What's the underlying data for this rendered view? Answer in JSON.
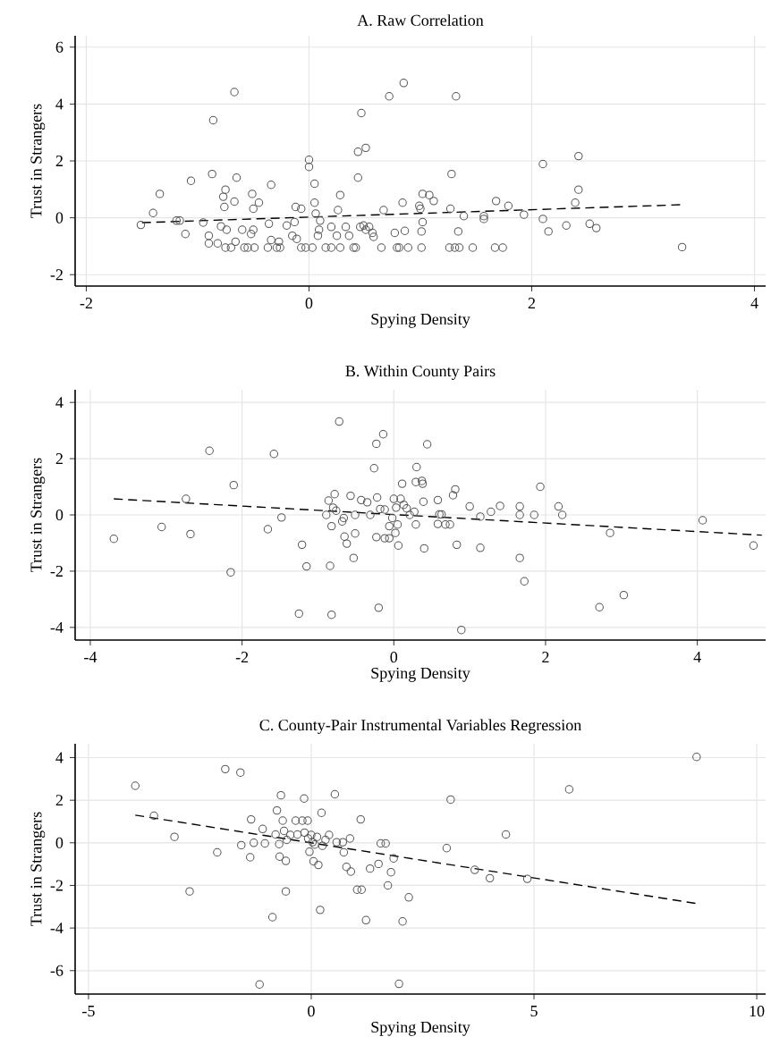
{
  "chart_data": [
    {
      "type": "scatter",
      "title": "A. Raw Correlation",
      "xlabel": "Spying Density",
      "ylabel": "Trust in Strangers",
      "xlim": [
        -2.1,
        4.1
      ],
      "ylim": [
        -2.4,
        6.4
      ],
      "xticks": [
        -2,
        0,
        2,
        4
      ],
      "yticks": [
        -2,
        0,
        2,
        4,
        6
      ],
      "grid": true,
      "marker": "circle",
      "series": [
        {
          "color": "#555555",
          "x": [
            -1.51,
            -1.4,
            -1.34,
            -1.19,
            -1.16,
            -1.11,
            -1.06,
            -0.95,
            -0.9,
            -0.9,
            -0.87,
            -0.86,
            -0.82,
            -0.79,
            -0.77,
            -0.76,
            -0.75,
            -0.75,
            -0.74,
            -0.7,
            -0.67,
            -0.67,
            -0.66,
            -0.65,
            -0.6,
            -0.58,
            -0.55,
            -0.52,
            -0.51,
            -0.5,
            -0.49,
            -0.45,
            -0.5,
            -0.37,
            -0.36,
            -0.34,
            -0.34,
            -0.29,
            -0.27,
            -0.26,
            -0.2,
            -0.15,
            -0.13,
            -0.12,
            -0.11,
            -0.07,
            -0.07,
            -0.03,
            0,
            0,
            0.03,
            0.05,
            0.05,
            0.06,
            0.08,
            0.09,
            0.1,
            0.15,
            0.2,
            0.2,
            0.25,
            0.26,
            0.28,
            0.28,
            0.33,
            0.36,
            0.4,
            0.42,
            0.44,
            0.44,
            0.46,
            0.47,
            0.49,
            0.51,
            0.51,
            0.54,
            0.57,
            0.58,
            0.65,
            0.67,
            0.72,
            0.77,
            0.79,
            0.81,
            0.84,
            0.86,
            0.85,
            0.89,
            0.99,
            1.0,
            1.01,
            1.02,
            1.01,
            1.02,
            1.08,
            1.12,
            1.26,
            1.28,
            1.27,
            1.31,
            1.32,
            1.34,
            1.35,
            1.39,
            1.47,
            1.57,
            1.57,
            1.67,
            1.68,
            1.74,
            1.79,
            1.93,
            2.1,
            2.1,
            2.15,
            2.31,
            2.39,
            2.42,
            2.42,
            2.52,
            2.58,
            3.35
          ],
          "values": [
            -0.25,
            0.17,
            0.84,
            -0.1,
            -0.1,
            -0.57,
            1.3,
            -0.17,
            -0.63,
            -0.9,
            1.54,
            3.43,
            -0.9,
            -0.3,
            0.74,
            0.38,
            0.99,
            -1.05,
            -0.42,
            -1.05,
            0.57,
            4.42,
            -0.84,
            1.41,
            -0.42,
            -1.05,
            -1.05,
            -0.57,
            0.84,
            0.32,
            -1.05,
            0.53,
            -0.42,
            -1.05,
            -0.21,
            1.16,
            -0.78,
            -1.05,
            -0.84,
            -1.05,
            -0.27,
            -0.63,
            -0.15,
            0.38,
            -0.74,
            -1.05,
            0.32,
            -1.05,
            2.04,
            1.79,
            -1.05,
            0.53,
            1.2,
            0.15,
            -0.63,
            -0.42,
            -0.1,
            -1.05,
            -0.32,
            -1.05,
            -0.63,
            0.27,
            0.8,
            -1.05,
            -0.32,
            -0.63,
            -1.05,
            -1.05,
            1.41,
            2.32,
            -0.32,
            3.68,
            -0.27,
            2.46,
            -0.42,
            -0.32,
            -0.53,
            -0.67,
            -1.05,
            0.27,
            4.27,
            -0.53,
            -1.05,
            -1.05,
            0.53,
            -0.46,
            4.74,
            -1.05,
            0.42,
            0.32,
            -0.48,
            -0.15,
            -1.05,
            0.84,
            0.8,
            0.59,
            -1.05,
            1.54,
            0.32,
            -1.05,
            4.27,
            -0.48,
            -1.05,
            0.06,
            -1.05,
            0.06,
            -0.04,
            -1.05,
            0.59,
            -1.05,
            0.42,
            0.11,
            1.89,
            -0.04,
            -0.48,
            -0.27,
            0.53,
            0.99,
            2.17,
            -0.21,
            -0.36,
            -1.03
          ]
        },
        {
          "type": "line",
          "color": "#000000",
          "marker": "none",
          "line_style": "dashed",
          "x": [
            -1.5,
            3.35
          ],
          "values": [
            -0.17,
            0.46
          ]
        }
      ]
    },
    {
      "type": "scatter",
      "title": "B. Within County Pairs",
      "xlabel": "Spying Density",
      "ylabel": "Trust in Strangers",
      "xlim": [
        -4.2,
        4.9
      ],
      "ylim": [
        -4.45,
        4.45
      ],
      "xticks": [
        -4,
        -2,
        0,
        2,
        4
      ],
      "yticks": [
        -4,
        -2,
        0,
        2,
        4
      ],
      "grid": true,
      "marker": "circle",
      "series": [
        {
          "color": "#555555",
          "x": [
            -3.69,
            -3.06,
            -2.74,
            -2.68,
            -2.43,
            -2.15,
            -2.11,
            -1.66,
            -1.58,
            -1.48,
            -1.25,
            -1.21,
            -1.15,
            -0.89,
            -0.86,
            -0.84,
            -0.82,
            -0.82,
            -0.8,
            -0.78,
            -0.76,
            -0.72,
            -0.68,
            -0.66,
            -0.65,
            -0.62,
            -0.57,
            -0.53,
            -0.51,
            -0.51,
            -0.43,
            -0.35,
            -0.31,
            -0.26,
            -0.23,
            -0.23,
            -0.22,
            -0.2,
            -0.18,
            -0.14,
            -0.12,
            -0.12,
            -0.06,
            -0.06,
            -0.02,
            0,
            0.02,
            0.03,
            0.05,
            0.06,
            0.09,
            0.11,
            0.13,
            0.17,
            0.21,
            0.27,
            0.29,
            0.29,
            0.3,
            0.37,
            0.38,
            0.39,
            0.4,
            0.44,
            0.58,
            0.6,
            0.63,
            0.58,
            0.68,
            0.74,
            0.78,
            0.81,
            0.83,
            0.89,
            1.0,
            1.14,
            1.14,
            1.28,
            1.4,
            1.66,
            1.66,
            1.66,
            1.72,
            1.85,
            1.93,
            2.17,
            2.22,
            2.71,
            2.85,
            3.03,
            4.07,
            4.74
          ],
          "values": [
            -0.85,
            -0.43,
            0.57,
            -0.68,
            2.28,
            -2.04,
            1.06,
            -0.51,
            2.17,
            -0.09,
            -3.51,
            -1.06,
            -1.83,
            0,
            0.51,
            -1.81,
            -3.55,
            -0.4,
            0.26,
            0.74,
            0.15,
            3.32,
            -0.23,
            -0.11,
            -0.77,
            -1.02,
            0.68,
            -1.53,
            -0.66,
            0,
            0.53,
            0.45,
            0,
            1.66,
            2.53,
            -0.79,
            0.62,
            -3.3,
            0.21,
            2.87,
            0.19,
            -0.83,
            -0.83,
            -0.4,
            -0.11,
            0.57,
            -0.64,
            0.26,
            -0.34,
            -1.09,
            0.57,
            1.11,
            0.36,
            0.23,
            0,
            0.11,
            1.17,
            -0.34,
            1.7,
            1.21,
            1.11,
            0.47,
            -1.19,
            2.51,
            0.53,
            0.02,
            0.02,
            -0.32,
            -0.34,
            -0.34,
            0.7,
            0.91,
            -1.06,
            -4.09,
            0.3,
            -1.17,
            -0.06,
            0.11,
            0.32,
            0.3,
            0,
            -1.53,
            -2.36,
            0,
            1.0,
            0.3,
            0,
            -3.28,
            -0.64,
            -2.85,
            -0.19,
            -1.09
          ]
        },
        {
          "type": "line",
          "color": "#000000",
          "marker": "none",
          "line_style": "dashed",
          "x": [
            -3.69,
            4.85
          ],
          "values": [
            0.57,
            -0.72
          ]
        }
      ]
    },
    {
      "type": "scatter",
      "title": "C. County-Pair Instrumental Variables Regression",
      "xlabel": "Spying Density",
      "ylabel": "Trust in Strangers",
      "xlim": [
        -5.3,
        10.2
      ],
      "ylim": [
        -7.1,
        4.65
      ],
      "xticks": [
        -5,
        0,
        5,
        10
      ],
      "yticks": [
        -6,
        -4,
        -2,
        0,
        2,
        4
      ],
      "grid": true,
      "marker": "circle",
      "series": [
        {
          "color": "#555555",
          "x": [
            -3.95,
            -3.53,
            -3.07,
            -2.73,
            -2.11,
            -1.93,
            -1.59,
            -1.57,
            -1.37,
            -1.35,
            -1.29,
            -1.09,
            -1.04,
            -0.87,
            -0.8,
            -0.77,
            -0.72,
            -0.71,
            -0.68,
            -0.64,
            -0.61,
            -0.57,
            -0.57,
            -0.55,
            -0.47,
            -0.35,
            -0.31,
            -0.2,
            -0.16,
            -0.15,
            -0.08,
            -0.07,
            -0.04,
            0,
            0.03,
            0.05,
            0.08,
            0.13,
            0.16,
            0.2,
            0.23,
            0.25,
            0.32,
            0.4,
            0.53,
            0.57,
            0.71,
            0.73,
            0.79,
            0.87,
            0.89,
            1.03,
            1.11,
            1.13,
            1.23,
            1.32,
            1.51,
            1.56,
            1.67,
            1.72,
            1.79,
            1.85,
            2.05,
            2.19,
            3.04,
            3.13,
            3.67,
            4.01,
            4.37,
            4.85,
            5.79,
            8.65,
            -1.16,
            1.97
          ],
          "values": [
            2.68,
            1.27,
            0.28,
            -2.28,
            -0.45,
            3.46,
            3.3,
            -0.11,
            -0.68,
            1.1,
            0,
            0.65,
            -0.03,
            -3.49,
            0.39,
            1.52,
            -0.06,
            -0.65,
            2.23,
            1.04,
            0.56,
            -0.85,
            -2.28,
            0.14,
            0.37,
            1.04,
            0.39,
            1.04,
            2.08,
            0.48,
            1.04,
            0.2,
            -0.42,
            0.37,
            0.03,
            -0.87,
            -0.08,
            0.28,
            -1.04,
            -3.15,
            1.41,
            -0.14,
            0.14,
            0.37,
            2.28,
            0.03,
            0.03,
            -0.45,
            -1.13,
            0.2,
            -1.35,
            -2.2,
            1.1,
            -2.2,
            -3.63,
            -1.21,
            -0.99,
            -0.03,
            -0.03,
            -2.0,
            -1.38,
            -0.73,
            -3.69,
            -2.56,
            -0.25,
            2.03,
            -1.27,
            -1.66,
            0.39,
            -1.69,
            2.51,
            4.03,
            -6.65,
            -6.62
          ]
        },
        {
          "type": "line",
          "color": "#000000",
          "marker": "none",
          "line_style": "dashed",
          "x": [
            -3.95,
            8.65
          ],
          "values": [
            1.3,
            -2.85
          ]
        }
      ]
    }
  ]
}
